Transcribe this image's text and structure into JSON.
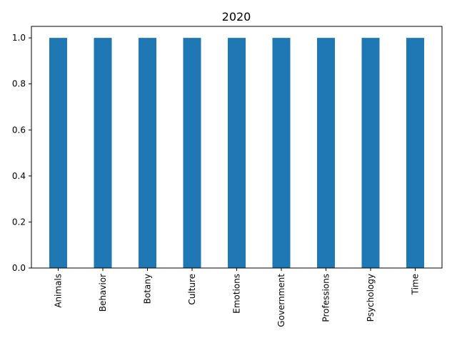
{
  "chart_data": {
    "type": "bar",
    "title": "2020",
    "xlabel": "",
    "ylabel": "",
    "categories": [
      "Animals",
      "Behavior",
      "Botany",
      "Culture",
      "Emotions",
      "Government",
      "Professions",
      "Psychology",
      "Time"
    ],
    "values": [
      1.0,
      1.0,
      1.0,
      1.0,
      1.0,
      1.0,
      1.0,
      1.0,
      1.0
    ],
    "ylim": [
      0,
      1.05
    ],
    "yticks": [
      "0.0",
      "0.2",
      "0.4",
      "0.6",
      "0.8",
      "1.0"
    ],
    "bar_color": "#1f77b4",
    "grid": false,
    "legend": "none"
  }
}
